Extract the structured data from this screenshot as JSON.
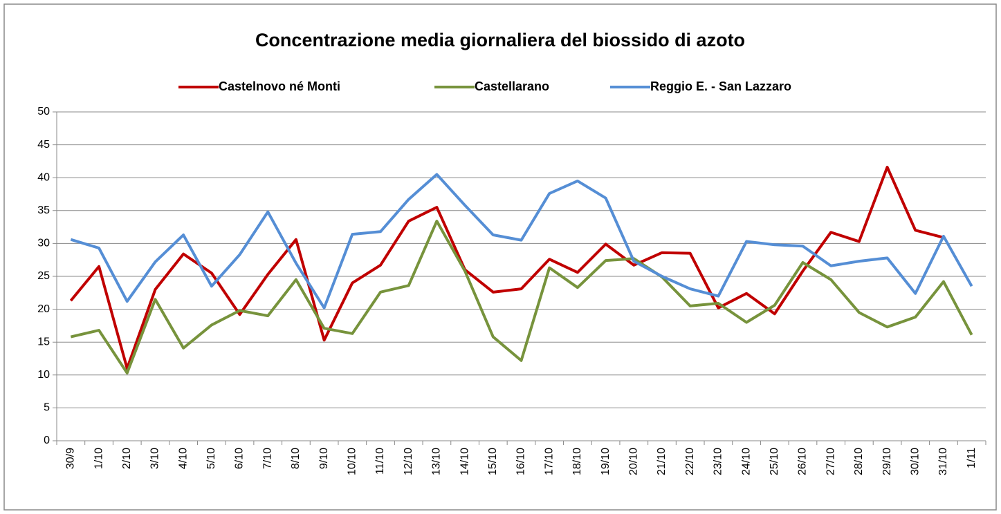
{
  "chart_data": {
    "type": "line",
    "title": "Concentrazione media giornaliera del biossido di azoto",
    "categories": [
      "30/9",
      "1/10",
      "2/10",
      "3/10",
      "4/10",
      "5/10",
      "6/10",
      "7/10",
      "8/10",
      "9/10",
      "10/10",
      "11/10",
      "12/10",
      "13/10",
      "14/10",
      "15/10",
      "16/10",
      "17/10",
      "18/10",
      "19/10",
      "20/10",
      "21/10",
      "22/10",
      "23/10",
      "24/10",
      "25/10",
      "26/10",
      "27/10",
      "28/10",
      "29/10",
      "30/10",
      "31/10",
      "1/11"
    ],
    "series": [
      {
        "name": "Castelnovo né Monti",
        "color": "#c00000",
        "values": [
          21.3,
          26.5,
          11,
          23,
          28.4,
          25.5,
          19.2,
          25.3,
          30.6,
          15.3,
          24,
          26.7,
          33.4,
          35.5,
          26,
          22.6,
          23.1,
          27.6,
          25.6,
          29.9,
          26.7,
          28.6,
          28.5,
          20.2,
          22.4,
          19.3,
          25.8,
          31.7,
          30.3,
          41.6,
          32,
          30.9,
          null
        ]
      },
      {
        "name": "Castellarano",
        "color": "#77933c",
        "values": [
          15.8,
          16.8,
          10.3,
          21.5,
          14.1,
          17.6,
          19.8,
          19,
          24.5,
          17.1,
          16.3,
          22.6,
          23.6,
          33.4,
          25.8,
          15.8,
          12.2,
          26.3,
          23.3,
          27.4,
          27.7,
          24.9,
          20.5,
          20.9,
          18,
          20.6,
          27.1,
          24.5,
          19.5,
          17.3,
          18.8,
          24.2,
          16.1
        ]
      },
      {
        "name": "Reggio E. - San Lazzaro",
        "color": "#558ed5",
        "values": [
          30.6,
          29.3,
          21.2,
          27.2,
          31.3,
          23.5,
          28.3,
          34.8,
          27,
          20.2,
          31.4,
          31.8,
          36.7,
          40.5,
          35.8,
          31.3,
          30.5,
          37.6,
          39.5,
          36.9,
          27.3,
          25,
          23.1,
          22,
          30.3,
          29.8,
          29.6,
          26.6,
          27.3,
          27.8,
          22.4,
          31.1,
          23.5
        ]
      }
    ],
    "ylim": [
      0,
      50
    ],
    "yticks": [
      0,
      5,
      10,
      15,
      20,
      25,
      30,
      35,
      40,
      45,
      50
    ],
    "grid": true,
    "legend": "top"
  }
}
